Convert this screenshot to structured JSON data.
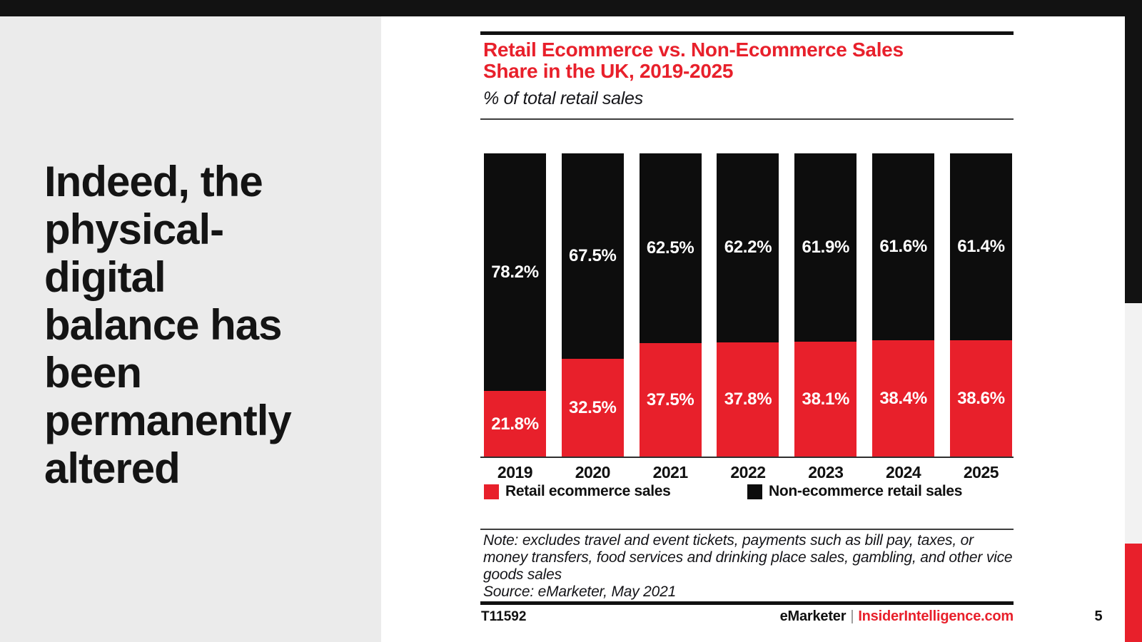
{
  "page_number": "5",
  "headline": {
    "lines": [
      "Indeed, the",
      "physical-",
      "digital",
      "balance has",
      "been",
      "permanently",
      "altered"
    ]
  },
  "chart": {
    "title_line1": "Retail Ecommerce vs. Non-Ecommerce Sales",
    "title_line2": "Share in the UK, 2019-2025",
    "subtitle": "% of total retail sales",
    "note_lines": [
      "Note: excludes travel and event tickets, payments such as bill pay, taxes, or",
      "money transfers, food services and drinking place sales, gambling, and other vice",
      "goods sales"
    ],
    "source": "Source: eMarketer, May 2021"
  },
  "footer": {
    "report_id": "T11592",
    "brand_left": "eMarketer",
    "brand_separator": "|",
    "brand_right": "InsiderIntelligence.com"
  },
  "colors": {
    "accent_red": "#e8202b",
    "bar_black": "#0d0d0d",
    "headline_panel_gray": "#ebebeb",
    "right_strip_gray": "#f2f2f2",
    "top_bar_black": "#121212"
  },
  "chart_data": {
    "type": "bar",
    "stacked": true,
    "unit": "%",
    "title": "Retail Ecommerce vs. Non-Ecommerce Sales Share in the UK, 2019-2025",
    "subtitle": "% of total retail sales",
    "categories": [
      "2019",
      "2020",
      "2021",
      "2022",
      "2023",
      "2024",
      "2025"
    ],
    "series": [
      {
        "name": "Retail ecommerce sales",
        "color": "#e8202b",
        "values": [
          21.8,
          32.5,
          37.5,
          37.8,
          38.1,
          38.4,
          38.6
        ]
      },
      {
        "name": "Non-ecommerce retail sales",
        "color": "#0d0d0d",
        "values": [
          78.2,
          67.5,
          62.5,
          62.2,
          61.9,
          61.6,
          61.4
        ]
      }
    ],
    "ylim": [
      0,
      100
    ],
    "grid": false,
    "legend_position": "bottom",
    "value_labels": "inside"
  }
}
